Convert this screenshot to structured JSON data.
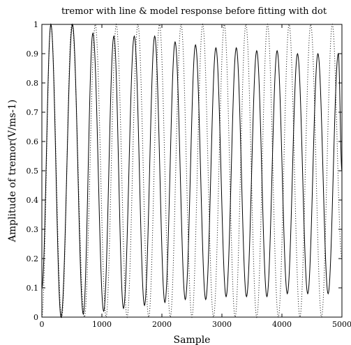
{
  "chart_data": {
    "type": "line",
    "title": "tremor with line & model response before fitting with dot",
    "xlabel": "Sample",
    "ylabel": "Amplitude of tremor(V/ms-1)",
    "xlim": [
      0,
      5000
    ],
    "ylim": [
      0,
      1
    ],
    "grid": false,
    "legend": "none",
    "x_ticks": [
      "0",
      "1000",
      "2000",
      "3000",
      "4000",
      "5000"
    ],
    "y_ticks": [
      "0",
      "0.1",
      "0.2",
      "0.3",
      "0.4",
      "0.5",
      "0.6",
      "0.7",
      "0.8",
      "0.9",
      "1"
    ],
    "series": [
      {
        "style": "solid",
        "color": "#000000",
        "x": [
          0,
          150,
          320,
          510,
          690,
          850,
          1030,
          1200,
          1360,
          1540,
          1710,
          1880,
          2050,
          2220,
          2390,
          2560,
          2730,
          2900,
          3070,
          3240,
          3410,
          3580,
          3750,
          3920,
          4090,
          4260,
          4430,
          4600,
          4770,
          4940,
          5000
        ],
        "y": [
          0.1,
          1.0,
          0.0,
          1.0,
          0.01,
          0.97,
          0.02,
          0.96,
          0.03,
          0.96,
          0.04,
          0.96,
          0.05,
          0.94,
          0.06,
          0.93,
          0.06,
          0.92,
          0.07,
          0.92,
          0.07,
          0.91,
          0.07,
          0.91,
          0.08,
          0.9,
          0.08,
          0.9,
          0.08,
          0.9,
          0.5
        ]
      },
      {
        "style": "dotted",
        "color": "#000000",
        "x": [
          0,
          150,
          330,
          500,
          710,
          890,
          1070,
          1240,
          1420,
          1600,
          1780,
          1960,
          2140,
          2320,
          2500,
          2680,
          2860,
          3040,
          3220,
          3400,
          3580,
          3760,
          3940,
          4120,
          4300,
          4480,
          4660,
          4840,
          5000
        ],
        "y": [
          0.0,
          1.0,
          0.0,
          1.0,
          0.0,
          1.0,
          0.0,
          1.0,
          0.0,
          1.0,
          0.0,
          1.0,
          0.0,
          1.0,
          0.0,
          1.0,
          0.0,
          1.0,
          0.0,
          1.0,
          0.0,
          1.0,
          0.0,
          1.0,
          0.0,
          1.0,
          0.0,
          1.0,
          0.2
        ]
      }
    ]
  }
}
